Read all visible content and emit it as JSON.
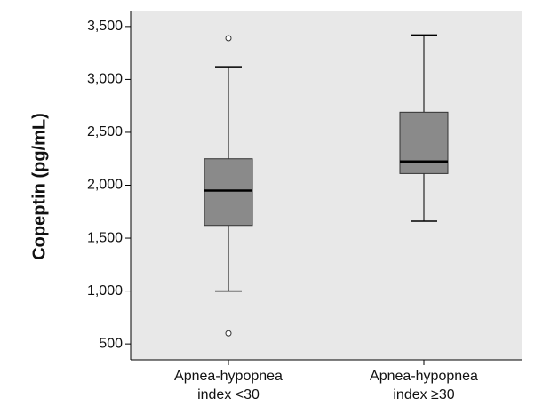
{
  "chart_data": {
    "type": "boxplot",
    "title": "",
    "xlabel": "",
    "ylabel": "Copeptin (pg/mL)",
    "ylim": [
      350,
      3650
    ],
    "yticks": [
      {
        "value": 500,
        "label": "500"
      },
      {
        "value": 1000,
        "label": "1,000"
      },
      {
        "value": 1500,
        "label": "1,500"
      },
      {
        "value": 2000,
        "label": "2,000"
      },
      {
        "value": 2500,
        "label": "2,500"
      },
      {
        "value": 3000,
        "label": "3,000"
      },
      {
        "value": 3500,
        "label": "3,500"
      }
    ],
    "grid": false,
    "colors": {
      "plot_background": "#e8e8e8",
      "box_fill": "#8a8a8a",
      "line": "#000000"
    },
    "categories": [
      {
        "line1": "Apnea-hypopnea",
        "line2": "index <30"
      },
      {
        "line1": "Apnea-hypopnea",
        "line2": "index ≥30"
      }
    ],
    "boxes": [
      {
        "whisker_low": 1000,
        "q1": 1620,
        "median": 1950,
        "q3": 2250,
        "whisker_high": 3120,
        "outliers": [
          3390,
          600
        ]
      },
      {
        "whisker_low": 1660,
        "q1": 2110,
        "median": 2225,
        "q3": 2690,
        "whisker_high": 3420,
        "outliers": []
      }
    ]
  }
}
